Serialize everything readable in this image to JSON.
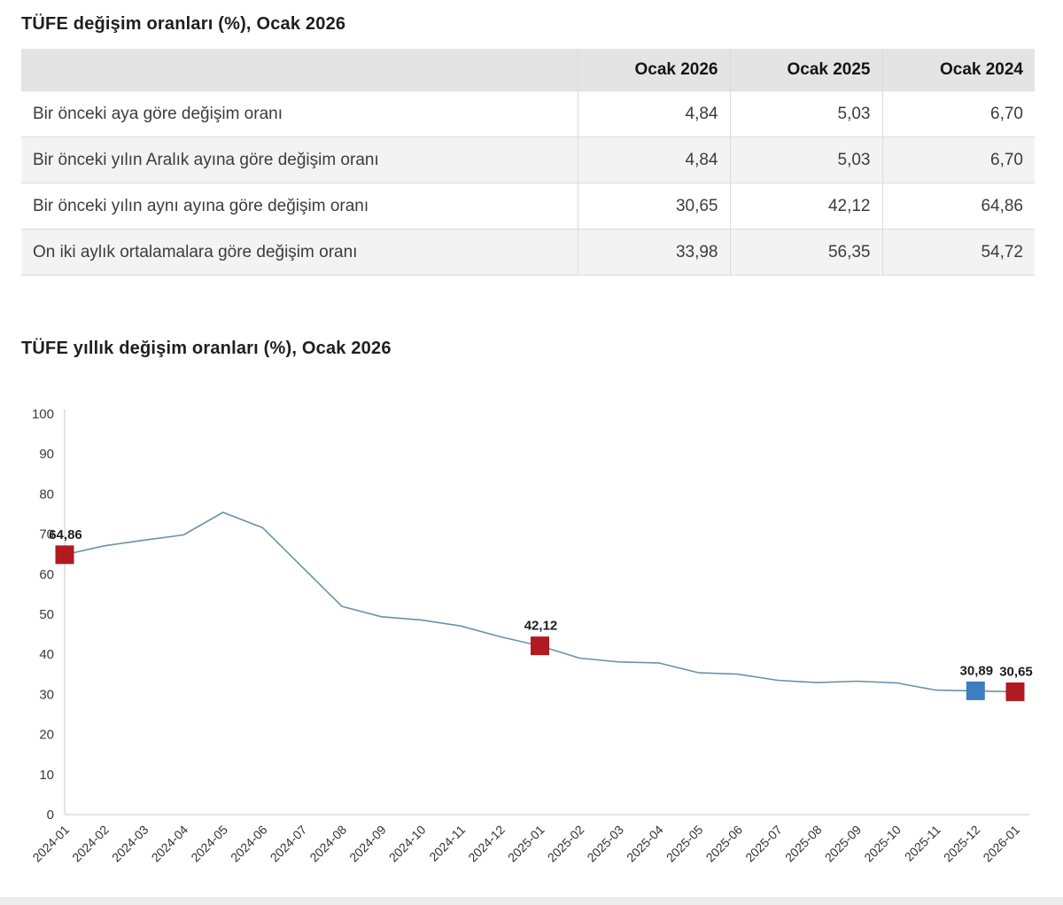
{
  "page": {
    "table_title": "TÜFE değişim oranları (%), Ocak 2026",
    "chart_title": "TÜFE yıllık değişim oranları (%), Ocak 2026"
  },
  "table": {
    "columns": [
      "",
      "Ocak 2026",
      "Ocak 2025",
      "Ocak 2024"
    ],
    "rows": [
      {
        "label": "Bir önceki aya göre değişim oranı",
        "values": [
          "4,84",
          "5,03",
          "6,70"
        ]
      },
      {
        "label": "Bir önceki yılın Aralık ayına göre değişim oranı",
        "values": [
          "4,84",
          "5,03",
          "6,70"
        ]
      },
      {
        "label": "Bir önceki yılın aynı ayına göre değişim oranı",
        "values": [
          "30,65",
          "42,12",
          "64,86"
        ]
      },
      {
        "label": "On iki aylık ortalamalara göre değişim oranı",
        "values": [
          "33,98",
          "56,35",
          "54,72"
        ]
      }
    ]
  },
  "chart_data": {
    "type": "line",
    "title": "TÜFE yıllık değişim oranları (%), Ocak 2026",
    "x": [
      "2024-01",
      "2024-02",
      "2024-03",
      "2024-04",
      "2024-05",
      "2024-06",
      "2024-07",
      "2024-08",
      "2024-09",
      "2024-10",
      "2024-11",
      "2024-12",
      "2025-01",
      "2025-02",
      "2025-03",
      "2025-04",
      "2025-05",
      "2025-06",
      "2025-07",
      "2025-08",
      "2025-09",
      "2025-10",
      "2025-11",
      "2025-12",
      "2026-01"
    ],
    "values": [
      64.86,
      67.07,
      68.5,
      69.8,
      75.45,
      71.6,
      61.78,
      51.97,
      49.38,
      48.58,
      47.09,
      44.38,
      42.12,
      39.05,
      38.1,
      37.86,
      35.41,
      35.05,
      33.52,
      32.95,
      33.29,
      32.87,
      31.07,
      30.89,
      30.65
    ],
    "ylim": [
      0,
      100
    ],
    "yticks": [
      0,
      10,
      20,
      30,
      40,
      50,
      60,
      70,
      80,
      90,
      100
    ],
    "grid": false,
    "legend": "none",
    "line_color": "#6a92aa",
    "axis_color": "#c9c9c9",
    "tick_label_color": "#3a3a3a",
    "markers": [
      {
        "x": "2024-01",
        "value": 64.86,
        "label": "64,86",
        "color": "#b11a21"
      },
      {
        "x": "2025-01",
        "value": 42.12,
        "label": "42,12",
        "color": "#b11a21"
      },
      {
        "x": "2025-12",
        "value": 30.89,
        "label": "30,89",
        "color": "#3b7fc0"
      },
      {
        "x": "2026-01",
        "value": 30.65,
        "label": "30,65",
        "color": "#b11a21"
      }
    ]
  }
}
